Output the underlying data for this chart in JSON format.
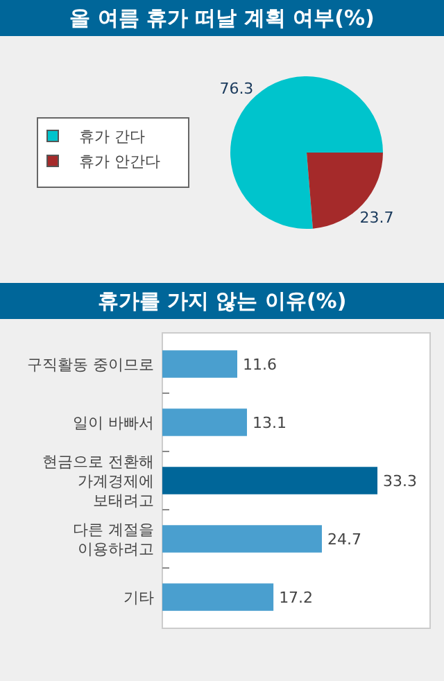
{
  "chart_data": [
    {
      "type": "pie",
      "title": "올 여름 휴가 떠날 계획 여부(%)",
      "categories": [
        "휴가 간다",
        "휴가 안간다"
      ],
      "values": [
        76.3,
        23.7
      ],
      "colors": [
        "#00c4cc",
        "#a52a2a"
      ],
      "data_labels": true,
      "legend": "left"
    },
    {
      "type": "bar",
      "title": "휴가를 가지 않는 이유(%)",
      "orientation": "horizontal",
      "categories": [
        "구직활동 중이므로",
        "일이 바빠서",
        "현금으로 전환해 가계경제에 보태려고",
        "다른 계절을 이용하려고",
        "기타"
      ],
      "values": [
        11.6,
        13.1,
        33.3,
        24.7,
        17.2
      ],
      "colors": [
        "#4a9fcf",
        "#4a9fcf",
        "#006699",
        "#4a9fcf",
        "#4a9fcf"
      ],
      "data_labels": true
    }
  ]
}
